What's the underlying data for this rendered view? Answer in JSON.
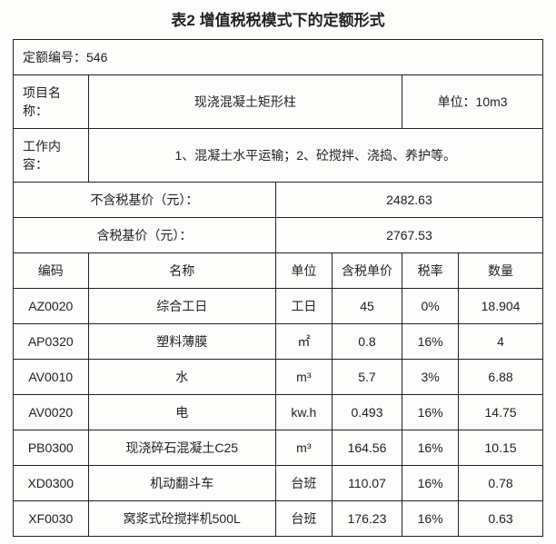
{
  "title": "表2 增值税税模式下的定额形式",
  "codeLabel": "定额编号：546",
  "projectLabel": "项目名称：",
  "projectName": "现浇混凝土矩形柱",
  "unitLabel": "单位：10m3",
  "workLabel": "工作内容：",
  "workContent": "1、混凝土水平运输；2、砼搅拌、浇捣、养护等。",
  "noTaxLabel": "不含税基价（元）：",
  "noTaxValue": "2482.63",
  "taxLabel": "含税基价（元）：",
  "taxValue": "2767.53",
  "headers": {
    "code": "编码",
    "name": "名称",
    "unit": "单位",
    "price": "含税单价",
    "rate": "税率",
    "qty": "数量"
  },
  "rows": [
    {
      "code": "AZ0020",
      "name": "综合工日",
      "unit": "工日",
      "price": "45",
      "rate": "0%",
      "qty": "18.904"
    },
    {
      "code": "AP0320",
      "name": "塑料薄膜",
      "unit": "㎡",
      "price": "0.8",
      "rate": "16%",
      "qty": "4"
    },
    {
      "code": "AV0010",
      "name": "水",
      "unit": "m³",
      "price": "5.7",
      "rate": "3%",
      "qty": "6.88"
    },
    {
      "code": "AV0020",
      "name": "电",
      "unit": "kw.h",
      "price": "0.493",
      "rate": "16%",
      "qty": "14.75"
    },
    {
      "code": "PB0300",
      "name": "现浇碎石混凝土C25",
      "unit": "m³",
      "price": "164.56",
      "rate": "16%",
      "qty": "10.15"
    },
    {
      "code": "XD0300",
      "name": "机动翻斗车",
      "unit": "台班",
      "price": "110.07",
      "rate": "16%",
      "qty": "0.78"
    },
    {
      "code": "XF0030",
      "name": "窝浆式砼搅拌机500L",
      "unit": "台班",
      "price": "176.23",
      "rate": "16%",
      "qty": "0.63"
    }
  ]
}
